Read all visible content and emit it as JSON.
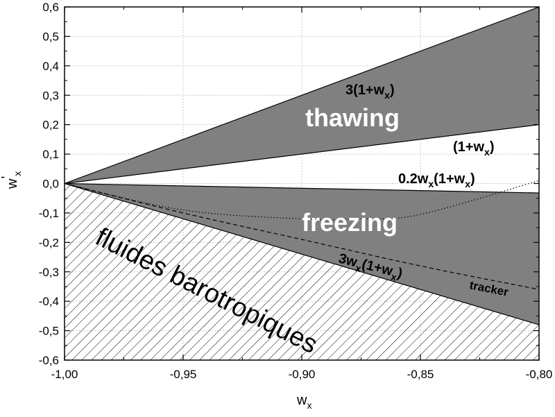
{
  "chart_data": {
    "type": "line",
    "xlabel": "w",
    "xlabel_sub": "x",
    "ylabel": "w",
    "ylabel_prime": "'",
    "ylabel_sub": "x",
    "xlim": [
      -1.0,
      -0.8
    ],
    "ylim": [
      -0.6,
      0.6
    ],
    "x_ticks": [
      -1.0,
      -0.95,
      -0.9,
      -0.85,
      -0.8
    ],
    "x_tick_labels": [
      "-1,00",
      "-0,95",
      "-0,90",
      "-0,85",
      "-0,80"
    ],
    "y_ticks": [
      -0.6,
      -0.5,
      -0.4,
      -0.3,
      -0.2,
      -0.1,
      0.0,
      0.1,
      0.2,
      0.3,
      0.4,
      0.5,
      0.6
    ],
    "y_tick_labels": [
      "-0,6",
      "-0,5",
      "-0,4",
      "-0,3",
      "-0,2",
      "-0,1",
      "0,0",
      "0,1",
      "0,2",
      "0,3",
      "0,4",
      "0,5",
      "0,6"
    ],
    "grid": true,
    "series": [
      {
        "name": "3(1+w_x)",
        "style": "solid",
        "x": [
          -1.0,
          -0.8
        ],
        "y": [
          0.0,
          0.6
        ]
      },
      {
        "name": "(1+w_x)",
        "style": "solid",
        "x": [
          -1.0,
          -0.8
        ],
        "y": [
          0.0,
          0.2
        ]
      },
      {
        "name": "0.2w_x(1+w_x)",
        "style": "solid",
        "x": [
          -1.0,
          -0.8
        ],
        "y": [
          0.0,
          -0.032
        ]
      },
      {
        "name": "3w_x(1+w_x)",
        "style": "solid",
        "x": [
          -1.0,
          -0.8
        ],
        "y": [
          0.0,
          -0.48
        ]
      },
      {
        "name": "tracker",
        "style": "dashed",
        "x": [
          -1.0,
          -0.95,
          -0.9,
          -0.85,
          -0.8
        ],
        "y": [
          0.0,
          -0.1,
          -0.19,
          -0.28,
          -0.36
        ]
      },
      {
        "name": "",
        "style": "dotted",
        "x": [
          -1.0,
          -0.95,
          -0.9,
          -0.875,
          -0.85,
          -0.8
        ],
        "y": [
          0.0,
          -0.09,
          -0.12,
          -0.12,
          -0.105,
          0.01
        ]
      }
    ],
    "regions": [
      {
        "name": "thawing",
        "fill": "#808080",
        "between": [
          "3(1+w_x)",
          "(1+w_x)"
        ]
      },
      {
        "name": "freezing",
        "fill": "#808080",
        "between": [
          "0.2w_x(1+w_x)",
          "3w_x(1+w_x)"
        ]
      },
      {
        "name": "fluides barotropiques",
        "fill": "hatch",
        "below": "3w_x(1+w_x)"
      }
    ],
    "annotations": {
      "thawing": "thawing",
      "freezing": "freezing",
      "baro": "fluides barotropiques",
      "tracker": "tracker",
      "l1_main": "3(1+w",
      "l1_sub": "x",
      "l1_tail": ")",
      "l2_main": "(1+w",
      "l2_sub": "x",
      "l2_tail": ")",
      "l3_main": "0.2w",
      "l3_sub1": "x",
      "l3_mid": "(1+w",
      "l3_sub2": "x",
      "l3_tail": ")",
      "l4_main": "3w",
      "l4_sub1": "x",
      "l4_mid": "(1+w",
      "l4_sub2": "x",
      "l4_tail": ")"
    }
  }
}
